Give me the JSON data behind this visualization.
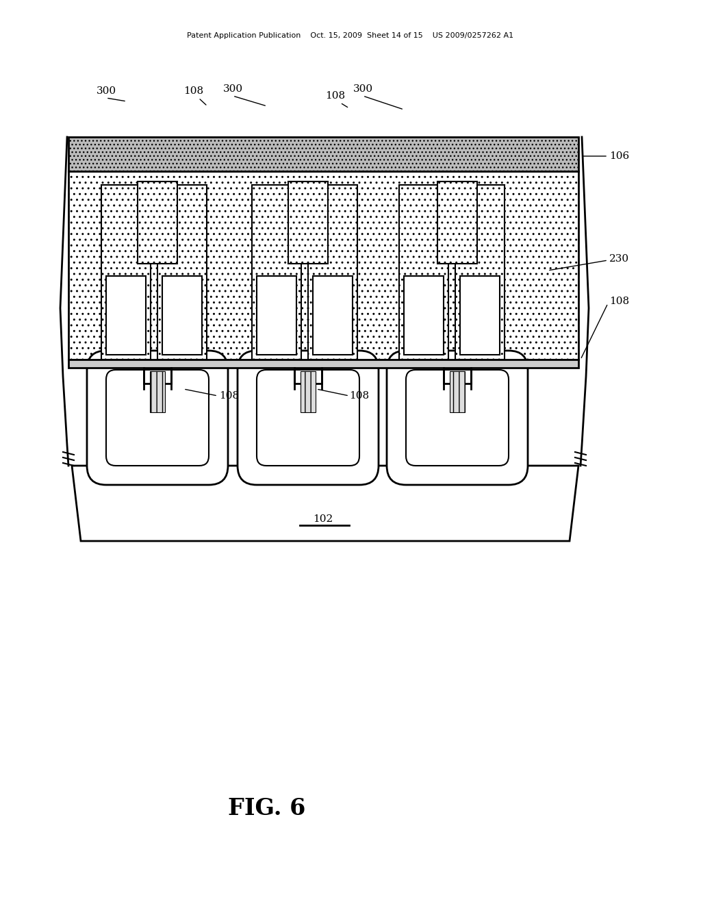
{
  "bg_color": "#ffffff",
  "line_color": "#000000",
  "header_text": "Patent Application Publication    Oct. 15, 2009  Sheet 14 of 15    US 2009/0257262 A1",
  "fig_label": "FIG. 6",
  "label_fs": 11,
  "header_fs": 8,
  "fig_fs": 24
}
